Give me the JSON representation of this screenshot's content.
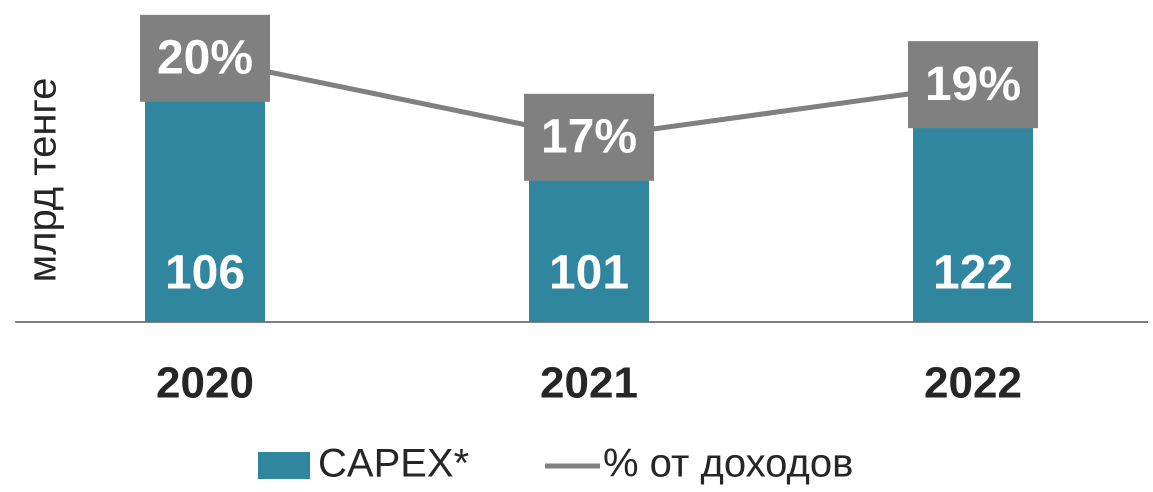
{
  "chart_data": {
    "type": "bar",
    "ylabel": "млрд тенге",
    "categories": [
      "2020",
      "2021",
      "2022"
    ],
    "ylim": [
      0,
      140
    ],
    "y2lim": [
      10,
      21.4
    ],
    "series": [
      {
        "name": "CAPEX*",
        "type": "bar",
        "color": "#31869f",
        "values": [
          106,
          101,
          122
        ]
      },
      {
        "name": "% от доходов",
        "type": "line",
        "axis": "y2",
        "color": "#808080",
        "values": [
          20,
          17,
          19
        ],
        "value_labels": [
          "20%",
          "17%",
          "19%"
        ]
      }
    ]
  }
}
